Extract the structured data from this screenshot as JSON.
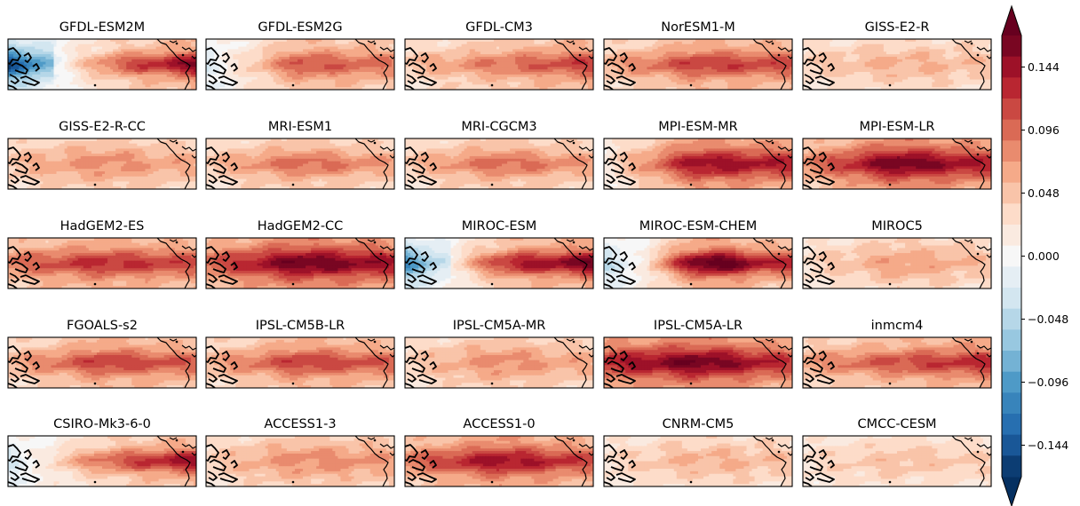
{
  "chart_data": {
    "type": "heatmap",
    "panels": [
      {
        "title": "GFDL-ESM2M",
        "pattern": "warm_east_cold_west",
        "west": -0.1,
        "central": 0.06,
        "east": 0.16
      },
      {
        "title": "GFDL-ESM2G",
        "pattern": "warm_belt",
        "west": -0.02,
        "central": 0.11,
        "east": 0.09
      },
      {
        "title": "GFDL-CM3",
        "pattern": "warm_belt",
        "west": 0.05,
        "central": 0.09,
        "east": 0.12
      },
      {
        "title": "NorESM1-M",
        "pattern": "warm_belt",
        "west": 0.06,
        "central": 0.12,
        "east": 0.11
      },
      {
        "title": "GISS-E2-R",
        "pattern": "weak_warm",
        "west": 0.04,
        "central": 0.06,
        "east": 0.05
      },
      {
        "title": "GISS-E2-R-CC",
        "pattern": "weak_warm",
        "west": 0.05,
        "central": 0.08,
        "east": 0.06
      },
      {
        "title": "MRI-ESM1",
        "pattern": "warm_belt",
        "west": 0.05,
        "central": 0.1,
        "east": 0.07
      },
      {
        "title": "MRI-CGCM3",
        "pattern": "warm_belt",
        "west": 0.05,
        "central": 0.1,
        "east": 0.07
      },
      {
        "title": "MPI-ESM-MR",
        "pattern": "strong_warm",
        "west": 0.02,
        "central": 0.15,
        "east": 0.13
      },
      {
        "title": "MPI-ESM-LR",
        "pattern": "strong_warm",
        "west": 0.08,
        "central": 0.17,
        "east": 0.13
      },
      {
        "title": "HadGEM2-ES",
        "pattern": "warm_belt",
        "west": 0.09,
        "central": 0.13,
        "east": 0.11
      },
      {
        "title": "HadGEM2-CC",
        "pattern": "strong_warm",
        "west": 0.1,
        "central": 0.17,
        "east": 0.14
      },
      {
        "title": "MIROC-ESM",
        "pattern": "warm_east_cold_west",
        "west": -0.07,
        "central": 0.1,
        "east": 0.17
      },
      {
        "title": "MIROC-ESM-CHEM",
        "pattern": "warm_east_cold_west",
        "west": -0.03,
        "central": 0.16,
        "east": 0.13
      },
      {
        "title": "MIROC5",
        "pattern": "weak_warm",
        "west": 0.03,
        "central": 0.07,
        "east": 0.05
      },
      {
        "title": "FGOALS-s2",
        "pattern": "warm_belt",
        "west": 0.06,
        "central": 0.12,
        "east": 0.1
      },
      {
        "title": "IPSL-CM5B-LR",
        "pattern": "warm_belt",
        "west": 0.06,
        "central": 0.12,
        "east": 0.1
      },
      {
        "title": "IPSL-CM5A-MR",
        "pattern": "weak_warm",
        "west": 0.04,
        "central": 0.08,
        "east": 0.06
      },
      {
        "title": "IPSL-CM5A-LR",
        "pattern": "strong_warm",
        "west": 0.13,
        "central": 0.17,
        "east": 0.12
      },
      {
        "title": "inmcm4",
        "pattern": "warm_belt",
        "west": 0.07,
        "central": 0.11,
        "east": 0.13
      },
      {
        "title": "CSIRO-Mk3-6-0",
        "pattern": "warm_east_cold_west",
        "west": -0.02,
        "central": 0.08,
        "east": 0.15
      },
      {
        "title": "ACCESS1-3",
        "pattern": "weak_warm",
        "west": 0.04,
        "central": 0.08,
        "east": 0.07
      },
      {
        "title": "ACCESS1-0",
        "pattern": "warm_belt",
        "west": 0.09,
        "central": 0.15,
        "east": 0.11
      },
      {
        "title": "CNRM-CM5",
        "pattern": "weak_warm",
        "west": 0.03,
        "central": 0.06,
        "east": 0.05
      },
      {
        "title": "CMCC-CESM",
        "pattern": "weak_warm",
        "west": 0.03,
        "central": 0.05,
        "east": 0.04
      }
    ],
    "colorbar": {
      "ticks": [
        0.144,
        0.096,
        0.048,
        0.0,
        -0.048,
        -0.096,
        -0.144
      ],
      "tick_labels": [
        "0.144",
        "0.096",
        "0.048",
        "0.000",
        "−0.048",
        "−0.096",
        "−0.144"
      ],
      "range": [
        -0.168,
        0.168
      ],
      "step": 0.016,
      "extend": "both",
      "colormap": "RdBu_r"
    }
  }
}
